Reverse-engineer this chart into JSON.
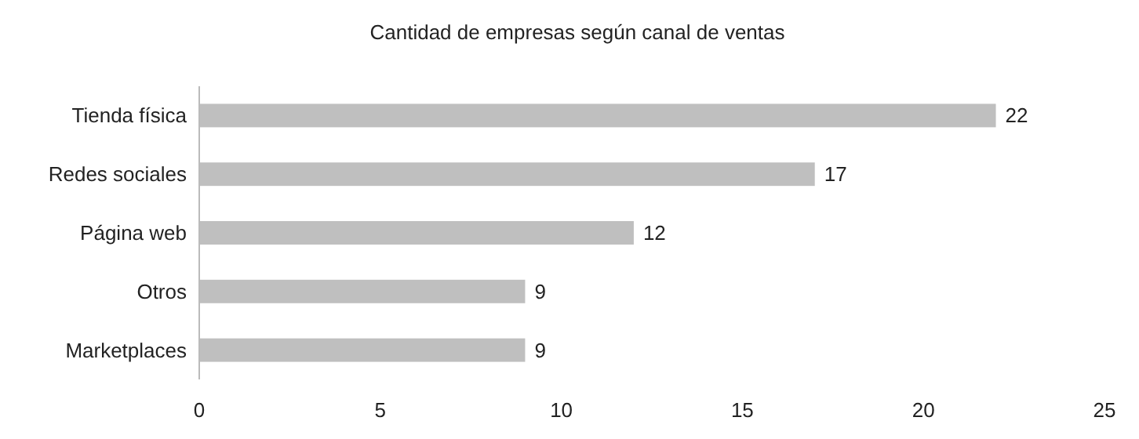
{
  "chart_data": {
    "type": "bar",
    "orientation": "horizontal",
    "title": "Cantidad de empresas según canal de ventas",
    "categories": [
      "Tienda física",
      "Redes sociales",
      "Página web",
      "Otros",
      "Marketplaces"
    ],
    "values": [
      22,
      17,
      12,
      9,
      9
    ],
    "color": "#bfbfbf",
    "xlim": [
      0,
      25
    ],
    "xticks": [
      0,
      5,
      10,
      15,
      20,
      25
    ],
    "data_labels": true,
    "grid": false
  }
}
